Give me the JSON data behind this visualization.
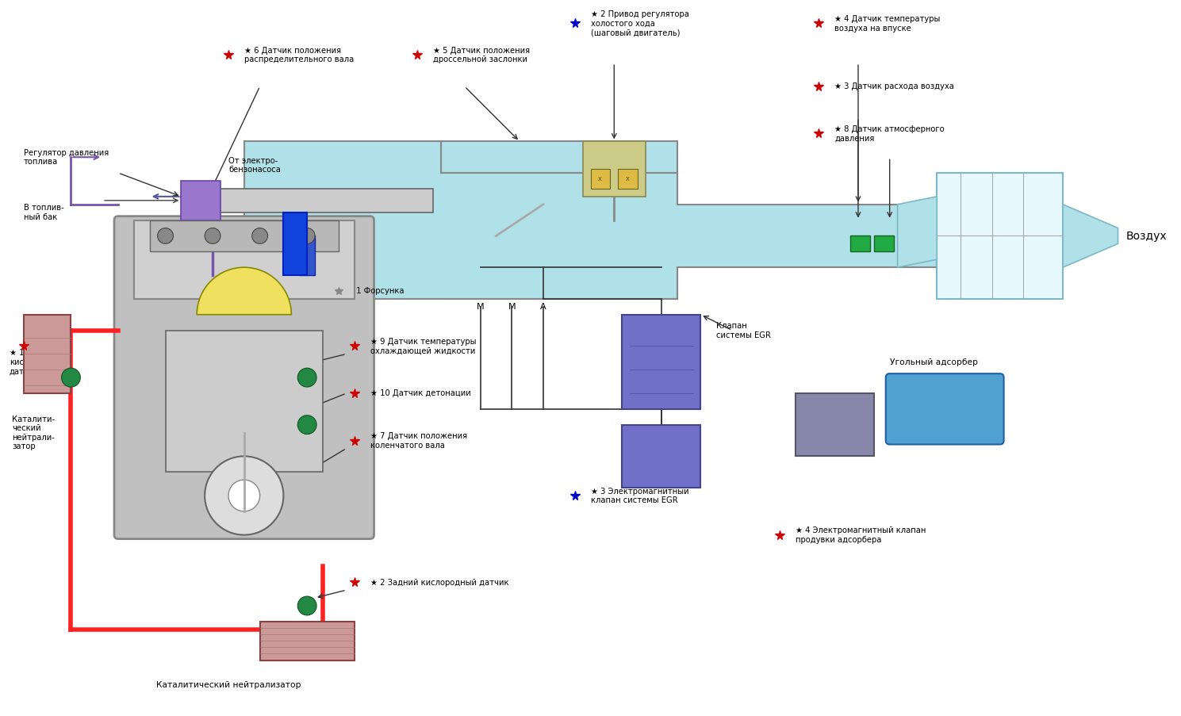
{
  "background_color": "#ffffff",
  "fig_width": 14.77,
  "fig_height": 8.94,
  "labels": {
    "sensor1": "★ 1 Передний\nкислородный\nдатчик",
    "sensor2": "★ 2 Задний кислородный датчик",
    "sensor3": "★ 3 Датчик расхода воздуха",
    "sensor4": "★ 4 Датчик температуры\nвоздуха на впуске",
    "sensor5": "★ 5 Датчик положения\nдроссельной заслонки",
    "sensor6": "★ 6 Датчик положения\nраспределительного вала",
    "sensor7": "★ 7 Датчик положения\nколенчатого вала",
    "sensor8": "★ 8 Датчик атмосферного\nдавления",
    "sensor9": "★ 9 Датчик температуры\nохлаждающей жидкости",
    "sensor10": "★ 10 Датчик детонации",
    "actuator1": "☆ 1 Форсунка",
    "actuator2": "★ 2 Привод регулятора\nхолостого хода\n(шаговый двигатель)",
    "actuator3_egr": "★ 3 Электромагнитный\nклапан системы EGR",
    "actuator4_ads": "★ 4 Электромагнитный клапан\nпродувки адсорбера",
    "egr_valve": "Клапан\nсистемы EGR",
    "pressure_reg": "Регулятор давления\nтоплива",
    "fuel_tank": "В топлив-\nный бак",
    "from_pump": "От электро-\nбензонасоса",
    "cat1": "Каталити-\nческий\nнейтрали-\nзатор",
    "cat2": "Каталитический нейтрализатор",
    "charcoal": "Угольный адсорбер",
    "air": "Воздух",
    "mma": "M    M    A"
  },
  "colors": {
    "air_path": "#b0e0e8",
    "air_path_border": "#7bb8c8",
    "fuel_path": "#ff2020",
    "fuel_path_border": "#cc0000",
    "engine_body": "#c0c0c0",
    "engine_border": "#888888",
    "intake_manifold": "#b0e0e8",
    "intake_border": "#888888",
    "egr_valve_fill": "#7070c8",
    "egr_border": "#444488",
    "charcoal_fill": "#50a0d0",
    "charcoal_border": "#2060a0",
    "injector_fill": "#2244aa",
    "connector_fill": "#9966bb",
    "red_star": "#cc0000",
    "blue_star": "#0000cc",
    "white_star": "#ffffff",
    "arrow_color": "#222222",
    "line_color": "#222222",
    "text_color": "#000000",
    "green_connector": "#228844",
    "yellow_component": "#ddcc00",
    "gray_box": "#888888"
  }
}
